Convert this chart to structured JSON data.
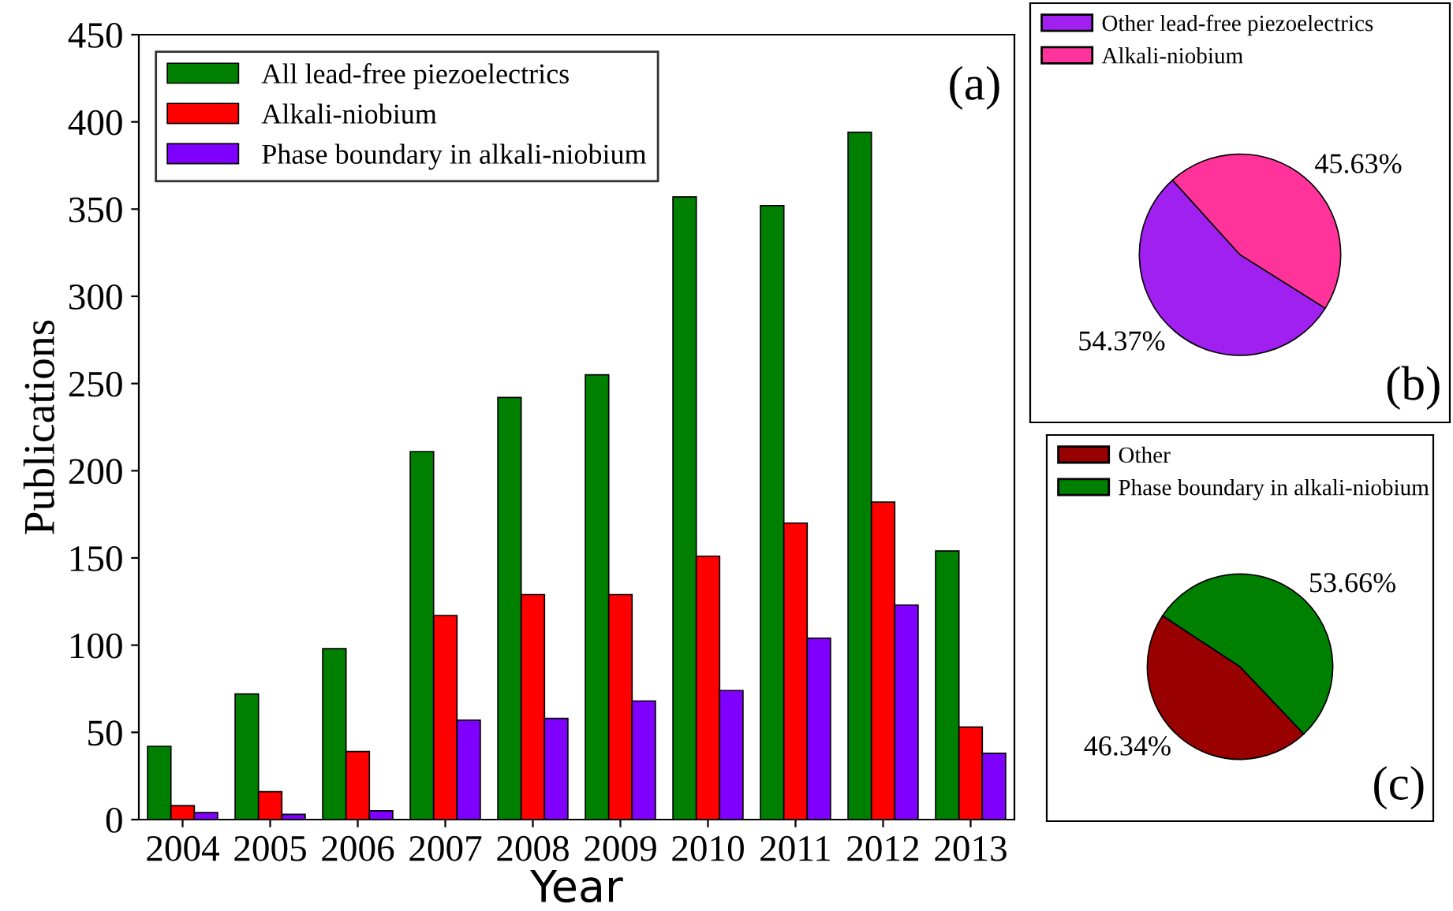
{
  "chart_data": [
    {
      "type": "bar",
      "xlabel": "Year",
      "ylabel": "Publications",
      "categories": [
        "2004",
        "2005",
        "2006",
        "2007",
        "2008",
        "2009",
        "2010",
        "2011",
        "2012",
        "2013"
      ],
      "series": [
        {
          "name": "All lead-free piezoelectrics",
          "color": "#008000",
          "values": [
            42,
            72,
            98,
            211,
            242,
            255,
            357,
            352,
            394,
            154
          ]
        },
        {
          "name": "Alkali-niobium",
          "color": "#ff0000",
          "values": [
            8,
            16,
            39,
            117,
            129,
            129,
            151,
            170,
            182,
            53
          ]
        },
        {
          "name": "Phase boundary in alkali-niobium",
          "color": "#8000ff",
          "values": [
            4,
            3,
            5,
            57,
            58,
            68,
            74,
            104,
            123,
            38
          ]
        }
      ],
      "ylim": [
        0,
        450
      ],
      "yticks": [
        0,
        50,
        100,
        150,
        200,
        250,
        300,
        350,
        400,
        450
      ],
      "grid": false,
      "legend": "top left",
      "annotations": [
        "(a)"
      ]
    },
    {
      "type": "pie",
      "categories": [
        "Other lead-free piezoelectrics",
        "Alkali-niobium"
      ],
      "values": [
        54.37,
        45.63
      ],
      "colors": [
        "#a020f0",
        "#ff3399"
      ],
      "value_labels": [
        "54.37%",
        "45.63%"
      ],
      "legend": "top left",
      "annotations": [
        "(b)"
      ]
    },
    {
      "type": "pie",
      "categories": [
        "Other",
        "Phase boundary in alkali-niobium"
      ],
      "values": [
        46.34,
        53.66
      ],
      "colors": [
        "#990000",
        "#008000"
      ],
      "value_labels": [
        "46.34%",
        "53.66%"
      ],
      "legend": "top left",
      "annotations": [
        "(c)"
      ]
    }
  ]
}
